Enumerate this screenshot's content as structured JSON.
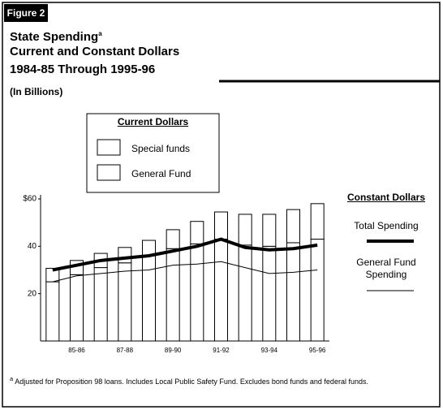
{
  "figure_label": "Figure 2",
  "chart_data": {
    "type": "bar",
    "title": [
      "State Spending",
      "Current and Constant Dollars",
      "1984-85 Through 1995-96"
    ],
    "title_note": "a",
    "subtitle": "(In Billions)",
    "current_legend_title": "Current Dollars",
    "constant_legend_title": "Constant Dollars",
    "categories": [
      null,
      "85-86",
      null,
      "87-88",
      null,
      "89-90",
      null,
      "91-92",
      null,
      "93-94",
      null,
      "95-96"
    ],
    "ylim": [
      0,
      60
    ],
    "yticks": [
      {
        "value": 60,
        "label": "$60"
      },
      40,
      20
    ],
    "stacked": true,
    "series": [
      {
        "name": "General Fund",
        "type": "bar",
        "color": "#ffffff",
        "values": [
          25,
          28,
          31,
          33,
          36,
          39,
          41,
          43,
          40.5,
          40,
          41.5,
          43
        ]
      },
      {
        "name": "Special funds",
        "type": "bar",
        "color": "#ffffff",
        "values": [
          5.7,
          6,
          6,
          6.5,
          6.5,
          8,
          9.5,
          11.5,
          13,
          13.5,
          14,
          15
        ]
      },
      {
        "name": "Total Spending",
        "type": "line",
        "line_style": "thick",
        "color": "#000000",
        "values": [
          30,
          32,
          34,
          35,
          36,
          38,
          40,
          43,
          39.5,
          38.5,
          39,
          40.5
        ]
      },
      {
        "name": "General Fund Spending",
        "type": "line",
        "line_style": "thin",
        "color": "#000000",
        "values": [
          25,
          27.5,
          28.5,
          29.5,
          30,
          32,
          32.5,
          33.5,
          31,
          28.5,
          29,
          30
        ]
      }
    ]
  },
  "footnote": {
    "marker": "a",
    "text": "Adjusted for Proposition 98 loans. Includes Local Public Safety Fund. Excludes bond funds and federal funds."
  }
}
